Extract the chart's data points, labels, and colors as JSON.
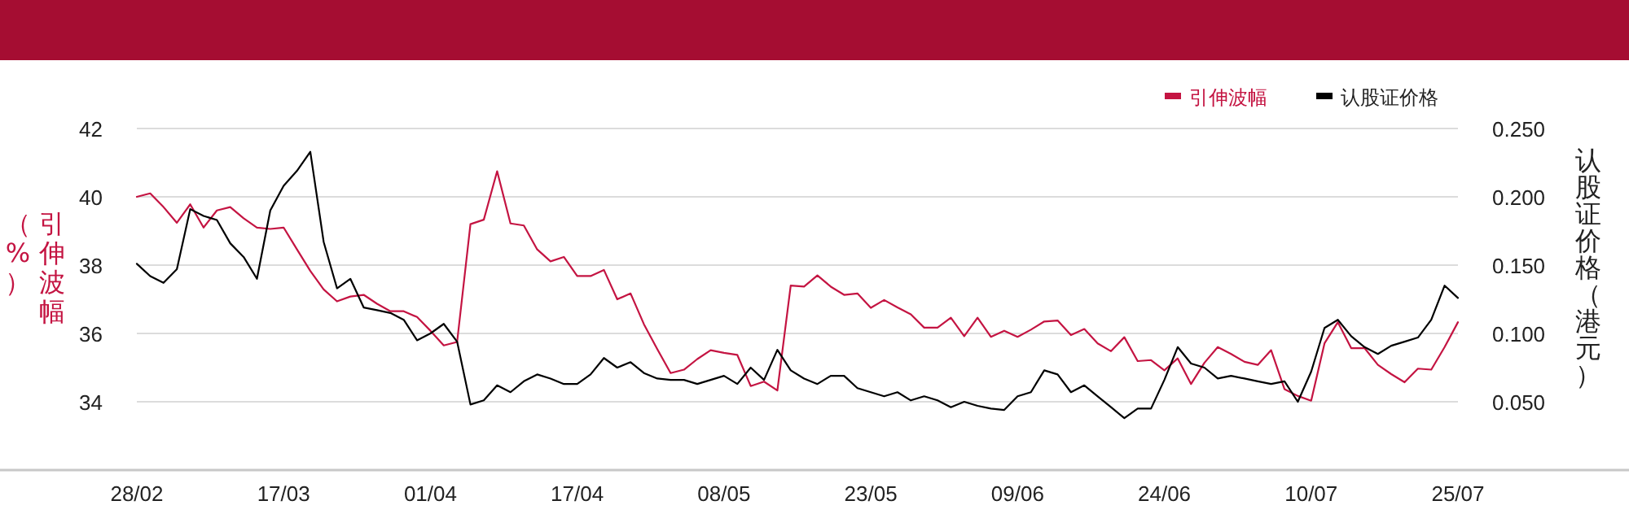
{
  "chart_data": {
    "type": "line",
    "categories": [
      "28/02",
      null,
      null,
      null,
      null,
      null,
      null,
      null,
      null,
      null,
      null,
      "17/03",
      null,
      null,
      null,
      null,
      null,
      null,
      null,
      null,
      null,
      null,
      "01/04",
      null,
      null,
      null,
      null,
      null,
      null,
      null,
      null,
      null,
      null,
      "17/04",
      null,
      null,
      null,
      null,
      null,
      null,
      null,
      null,
      null,
      null,
      "08/05",
      null,
      null,
      null,
      null,
      null,
      null,
      null,
      null,
      null,
      null,
      "23/05",
      null,
      null,
      null,
      null,
      null,
      null,
      null,
      null,
      null,
      null,
      "09/06",
      null,
      null,
      null,
      null,
      null,
      null,
      null,
      null,
      null,
      null,
      "24/06",
      null,
      null,
      null,
      null,
      null,
      null,
      null,
      null,
      null,
      null,
      "10/07",
      null,
      null,
      null,
      null,
      null,
      null,
      null,
      null,
      null,
      null,
      "25/07"
    ],
    "series": [
      {
        "name": "引伸波幅",
        "color": "#c41442",
        "values": [
          40.0,
          40.1,
          39.7,
          39.24,
          39.78,
          39.1,
          39.6,
          39.7,
          39.37,
          39.1,
          39.06,
          39.1,
          38.46,
          37.83,
          37.29,
          36.94,
          37.08,
          37.13,
          36.87,
          36.65,
          36.65,
          36.48,
          36.08,
          35.65,
          35.75,
          39.2,
          39.33,
          40.75,
          39.22,
          39.16,
          38.46,
          38.11,
          38.24,
          37.68,
          37.68,
          37.86,
          37.0,
          37.17,
          36.27,
          35.54,
          34.84,
          34.94,
          35.25,
          35.51,
          35.43,
          35.37,
          34.46,
          34.59,
          34.33,
          37.4,
          37.37,
          37.7,
          37.37,
          37.13,
          37.17,
          36.75,
          36.98,
          36.76,
          36.56,
          36.17,
          36.17,
          36.46,
          35.92,
          36.46,
          35.9,
          36.08,
          35.9,
          36.11,
          36.35,
          36.38,
          35.95,
          36.13,
          35.71,
          35.48,
          35.89,
          35.19,
          35.22,
          34.92,
          35.27,
          34.52,
          35.14,
          35.6,
          35.4,
          35.17,
          35.08,
          35.51,
          34.37,
          34.17,
          34.03,
          35.71,
          36.33,
          35.57,
          35.57,
          35.08,
          34.81,
          34.57,
          34.97,
          34.94,
          35.6,
          36.33
        ]
      },
      {
        "name": "认股证价格",
        "color": "#000000",
        "axis": "y2",
        "values": [
          0.151,
          0.142,
          0.137,
          0.147,
          0.191,
          0.186,
          0.183,
          0.166,
          0.156,
          0.14,
          0.19,
          0.208,
          0.219,
          0.233,
          0.167,
          0.133,
          0.14,
          0.119,
          0.117,
          0.115,
          0.11,
          0.095,
          0.1,
          0.107,
          0.094,
          0.048,
          0.051,
          0.062,
          0.057,
          0.065,
          0.07,
          0.067,
          0.063,
          0.063,
          0.07,
          0.082,
          0.075,
          0.079,
          0.071,
          0.067,
          0.066,
          0.066,
          0.063,
          0.066,
          0.069,
          0.063,
          0.075,
          0.066,
          0.088,
          0.073,
          0.067,
          0.063,
          0.069,
          0.069,
          0.06,
          0.057,
          0.054,
          0.057,
          0.051,
          0.054,
          0.051,
          0.046,
          0.05,
          0.047,
          0.045,
          0.044,
          0.054,
          0.057,
          0.073,
          0.07,
          0.057,
          0.062,
          0.054,
          0.046,
          0.038,
          0.045,
          0.045,
          0.066,
          0.09,
          0.078,
          0.075,
          0.067,
          0.069,
          0.067,
          0.065,
          0.063,
          0.065,
          0.05,
          0.072,
          0.104,
          0.11,
          0.098,
          0.09,
          0.085,
          0.091,
          0.094,
          0.097,
          0.11,
          0.135,
          0.126
        ]
      }
    ],
    "ylabel": "引伸波幅（%）",
    "y2label": "认股证价格（港元）",
    "ylim": [
      32,
      42
    ],
    "yticks": [
      34,
      36,
      38,
      40,
      42
    ],
    "y2lim": [
      0,
      0.25
    ],
    "y2ticks": [
      {
        "value": 0.05,
        "label": "0.050"
      },
      {
        "value": 0.1,
        "label": "0.100"
      },
      {
        "value": 0.15,
        "label": "0.150"
      },
      {
        "value": 0.2,
        "label": "0.200"
      },
      {
        "value": 0.25,
        "label": "0.250"
      }
    ],
    "grid": "y",
    "legend": "top right"
  }
}
